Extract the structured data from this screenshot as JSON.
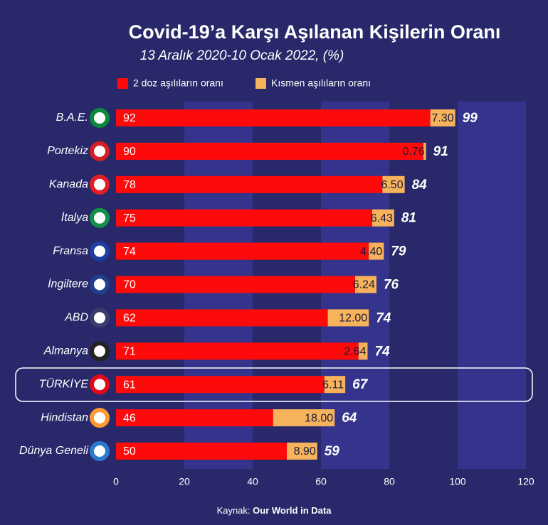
{
  "chart_data": {
    "type": "stacked_bar_horizontal",
    "title": "Covid-19’a Karşı Aşılanan Kişilerin Oranı",
    "subtitle": "13 Aralık 2020-10 Ocak 2022, (%)",
    "categories": [
      "B.A.E.",
      "Portekiz",
      "Kanada",
      "İtalya",
      "Fransa",
      "İngiltere",
      "ABD",
      "Almanya",
      "TÜRKİYE",
      "Hindistan",
      "Dünya Geneli"
    ],
    "series": [
      {
        "name": "2 doz aşılıların oranı",
        "color": "#ff0a0a",
        "values": [
          92,
          90,
          78,
          75,
          74,
          70,
          62,
          71,
          61,
          46,
          50
        ]
      },
      {
        "name": "Kısmen aşılıların oranı",
        "color": "#f7b35c",
        "values": [
          7.3,
          0.76,
          6.5,
          6.43,
          4.4,
          6.24,
          12,
          2.64,
          6.11,
          18,
          8.9
        ],
        "value_labels": [
          "7.30",
          "0.76",
          "6.50",
          "6.43",
          "4.40",
          "6.24",
          "12.00",
          "2.64",
          "6.11",
          "18.00",
          "8.90"
        ]
      }
    ],
    "totals": [
      99,
      91,
      84,
      81,
      79,
      76,
      74,
      74,
      67,
      64,
      59
    ],
    "xlim": [
      0,
      120
    ],
    "xticks": [
      0,
      20,
      40,
      60,
      80,
      100,
      120
    ],
    "source_prefix": "Kaynak:",
    "source": "Our World in Data"
  }
}
